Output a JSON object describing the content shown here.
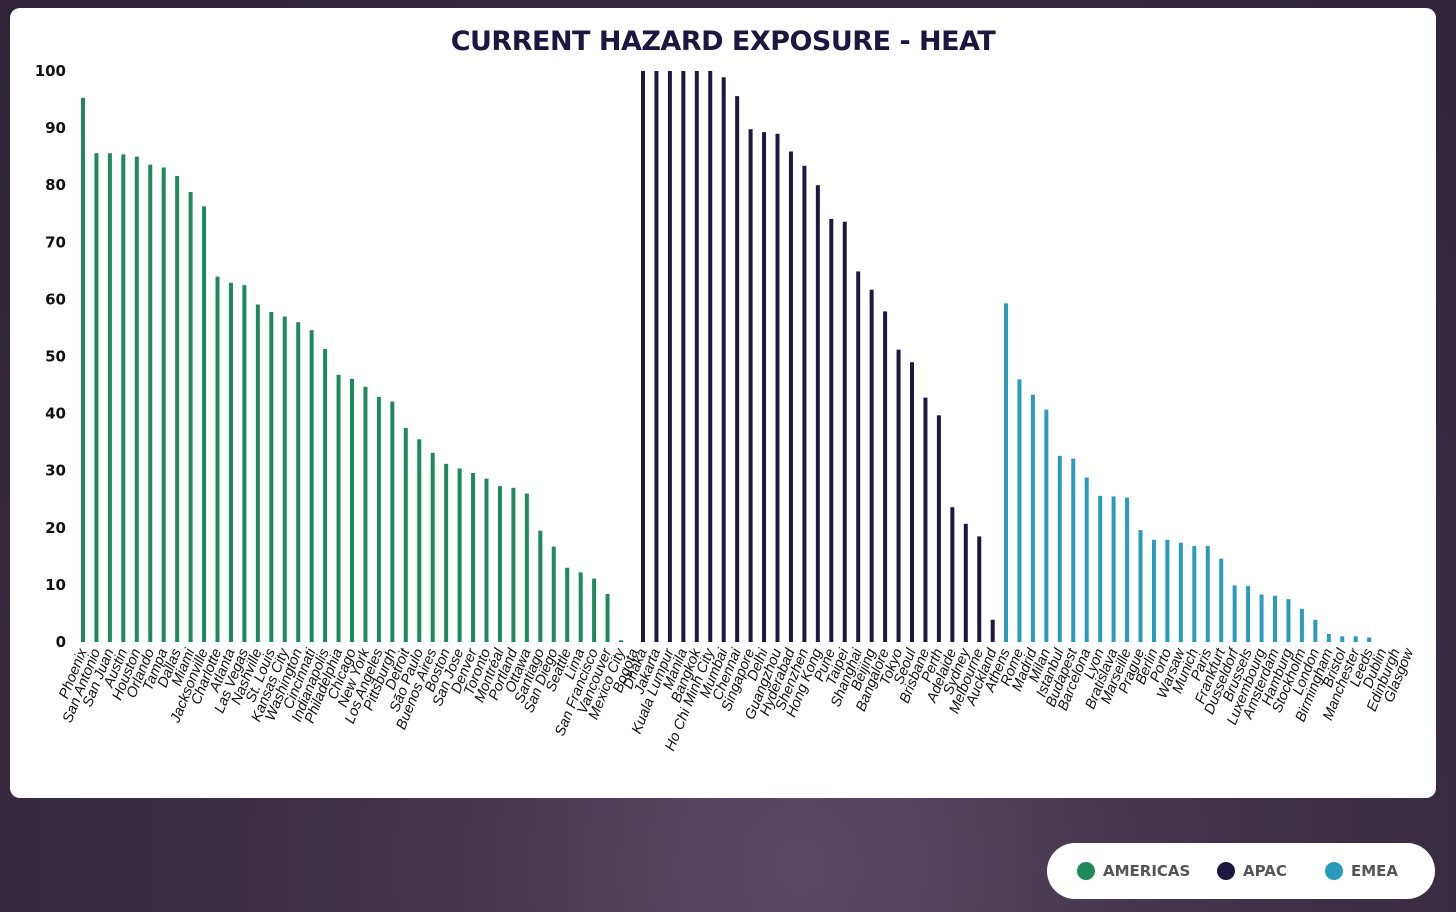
{
  "chart_data": {
    "type": "bar",
    "title": "CURRENT HAZARD EXPOSURE - HEAT",
    "ylim": [
      0,
      100
    ],
    "yticks": [
      0,
      10,
      20,
      30,
      40,
      50,
      60,
      70,
      80,
      90,
      100
    ],
    "grid": false,
    "legend_placement": "bottom-right",
    "series": [
      {
        "name": "AMERICAS",
        "color": "#1e8a5c",
        "categories": [
          "Phoenix",
          "San Antonio",
          "San Juan",
          "Austin",
          "Houston",
          "Orlando",
          "Tampa",
          "Dallas",
          "Miami",
          "Jacksonville",
          "Charlotte",
          "Atlanta",
          "Las Vegas",
          "Nashville",
          "St. Louis",
          "Kansas City",
          "Washington",
          "Cincinnati",
          "Indianapolis",
          "Philadelphia",
          "Chicago",
          "New York",
          "Los Angeles",
          "Pittsburgh",
          "Detroit",
          "São Paulo",
          "Buenos Aires",
          "Boston",
          "San Jose",
          "Denver",
          "Toronto",
          "Montréal",
          "Portland",
          "Ottawa",
          "Santiago",
          "San Diego",
          "Seattle",
          "Lima",
          "San Francisco",
          "Vancouver",
          "Mexico City",
          "Bogota"
        ],
        "values": [
          95.3,
          85.6,
          85.6,
          85.4,
          85.0,
          83.6,
          83.1,
          81.6,
          78.8,
          76.3,
          64.0,
          62.9,
          62.5,
          59.1,
          57.8,
          57.0,
          56.0,
          54.6,
          51.3,
          46.8,
          46.1,
          44.7,
          42.9,
          42.1,
          37.5,
          35.5,
          33.1,
          31.2,
          30.4,
          29.6,
          28.6,
          27.3,
          27.0,
          26.0,
          19.5,
          16.7,
          13.0,
          12.2,
          11.1,
          8.4,
          0.3,
          0
        ]
      },
      {
        "name": "APAC",
        "color": "#1c1840",
        "categories": [
          "Dhaka",
          "Jakarta",
          "Kuala Lumpur",
          "Manila",
          "Bangkok",
          "Ho Chi Minh City",
          "Mumbai",
          "Chennai",
          "Singapore",
          "Delhi",
          "Guangzhou",
          "Hyderabad",
          "Shenzhen",
          "Hong Kong",
          "Pune",
          "Taipei",
          "Shanghai",
          "Beijing",
          "Bangalore",
          "Tokyo",
          "Seoul",
          "Brisbane",
          "Perth",
          "Adelaide",
          "Sydney",
          "Melbourne",
          "Auckland"
        ],
        "values": [
          100,
          100,
          100,
          100,
          100,
          100,
          98.9,
          95.6,
          89.8,
          89.3,
          89.0,
          85.9,
          83.4,
          80.0,
          74.1,
          73.6,
          64.9,
          61.7,
          57.9,
          51.2,
          49.0,
          42.8,
          39.7,
          23.6,
          20.7,
          18.5,
          3.9
        ]
      },
      {
        "name": "EMEA",
        "color": "#2a9bbc",
        "categories": [
          "Athens",
          "Rome",
          "Madrid",
          "Milan",
          "Istanbul",
          "Budapest",
          "Barcelona",
          "Lyon",
          "Bratislava",
          "Marseille",
          "Prague",
          "Berlin",
          "Porto",
          "Warsaw",
          "Munich",
          "Paris",
          "Frankfurt",
          "Dusseldorf",
          "Brussels",
          "Luxembourg",
          "Amsterdam",
          "Hamburg",
          "Stockholm",
          "London",
          "Birmingham",
          "Bristol",
          "Manchester",
          "Leeds",
          "Dublin",
          "Edinburgh",
          "Glasgow"
        ],
        "values": [
          59.3,
          46.0,
          43.3,
          40.7,
          32.6,
          32.1,
          28.8,
          25.6,
          25.5,
          25.3,
          19.6,
          17.9,
          17.9,
          17.4,
          16.8,
          16.8,
          14.6,
          9.9,
          9.8,
          8.3,
          8.1,
          7.5,
          5.8,
          3.9,
          1.4,
          1.0,
          1.0,
          0.8,
          0,
          0,
          0
        ]
      }
    ]
  }
}
